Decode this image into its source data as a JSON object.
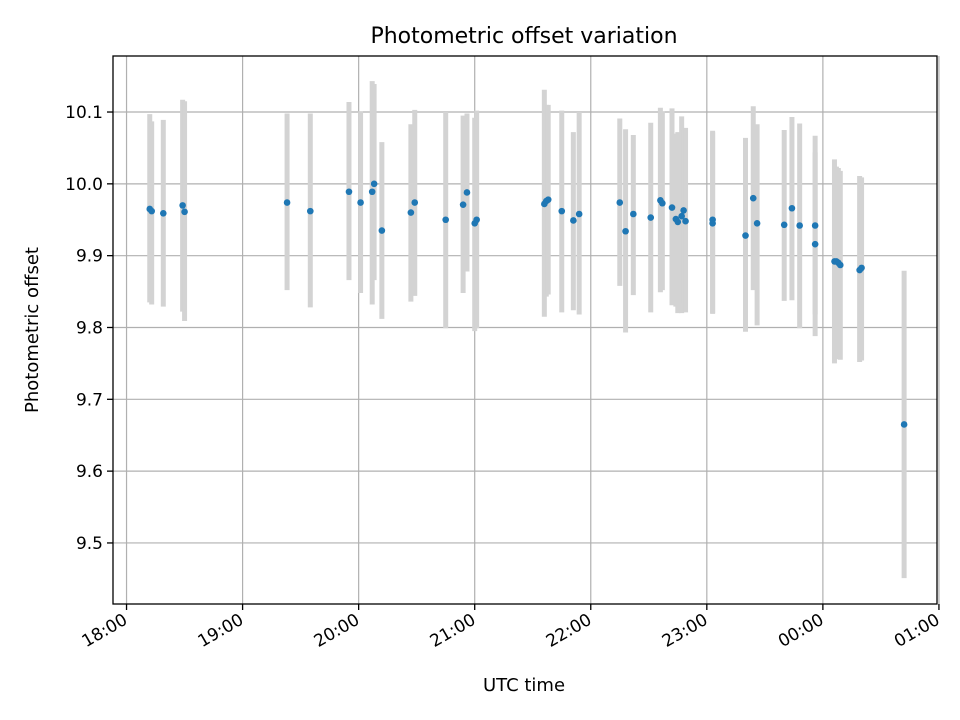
{
  "chart_data": {
    "type": "scatter",
    "title": "Photometric offset variation",
    "xlabel": "UTC time",
    "ylabel": "Photometric offset",
    "xlim": [
      "17:53",
      "00:59"
    ],
    "ylim": [
      9.415,
      10.178
    ],
    "x_ticks": [
      "18:00",
      "19:00",
      "20:00",
      "21:00",
      "22:00",
      "23:00",
      "00:00",
      "01:00"
    ],
    "y_ticks": [
      "9.5",
      "9.6",
      "9.7",
      "9.8",
      "9.9",
      "10.0",
      "10.1"
    ],
    "grid": true,
    "marker_color": "#1f77b4",
    "errorbar_color": "#d3d3d3",
    "series": [
      {
        "x": [
          "18:12",
          "18:13",
          "18:19",
          "18:29",
          "18:30",
          "19:23",
          "19:35",
          "19:55",
          "20:01",
          "20:07",
          "20:08",
          "20:12",
          "20:27",
          "20:29",
          "20:45",
          "20:54",
          "20:56",
          "21:00",
          "21:01",
          "21:36",
          "21:37",
          "21:38",
          "21:45",
          "21:51",
          "21:54",
          "22:15",
          "22:18",
          "22:22",
          "22:31",
          "22:36",
          "22:37",
          "22:42",
          "22:44",
          "22:45",
          "22:47",
          "22:48",
          "22:49",
          "23:03",
          "23:03",
          "23:20",
          "23:24",
          "23:26",
          "23:40",
          "23:44",
          "23:48",
          "23:56",
          "23:56",
          "00:06",
          "00:07",
          "00:08",
          "00:09",
          "00:19",
          "00:20",
          "00:42"
        ],
        "y": [
          9.965,
          9.962,
          9.959,
          9.97,
          9.961,
          9.974,
          9.962,
          9.989,
          9.974,
          9.989,
          10.0,
          9.935,
          9.96,
          9.974,
          9.95,
          9.971,
          9.988,
          9.945,
          9.95,
          9.972,
          9.976,
          9.978,
          9.962,
          9.949,
          9.958,
          9.974,
          9.934,
          9.958,
          9.953,
          9.977,
          9.973,
          9.967,
          9.951,
          9.947,
          9.955,
          9.963,
          9.948,
          9.95,
          9.945,
          9.928,
          9.98,
          9.945,
          9.943,
          9.966,
          9.942,
          9.916,
          9.942,
          9.892,
          9.892,
          9.89,
          9.887,
          9.88,
          9.883,
          9.665
        ],
        "y_low": [
          9.835,
          9.832,
          9.829,
          9.822,
          9.809,
          9.852,
          9.828,
          9.866,
          9.848,
          9.832,
          9.866,
          9.812,
          9.836,
          9.844,
          9.799,
          9.848,
          9.878,
          9.795,
          9.799,
          9.815,
          9.843,
          9.846,
          9.821,
          9.824,
          9.818,
          9.858,
          9.793,
          9.845,
          9.821,
          9.849,
          9.852,
          9.831,
          9.829,
          9.82,
          9.82,
          9.833,
          9.821,
          9.82,
          9.819,
          9.794,
          9.852,
          9.803,
          9.837,
          9.838,
          9.799,
          9.788,
          9.818,
          9.75,
          9.757,
          9.756,
          9.755,
          9.752,
          9.754,
          9.451
        ],
        "y_high": [
          10.097,
          10.087,
          10.089,
          10.117,
          10.115,
          10.098,
          10.098,
          10.114,
          10.101,
          10.143,
          10.139,
          10.058,
          10.083,
          10.103,
          10.1,
          10.095,
          10.098,
          10.092,
          10.102,
          10.131,
          10.11,
          10.11,
          10.102,
          10.072,
          10.1,
          10.091,
          10.076,
          10.068,
          10.085,
          10.106,
          10.101,
          10.105,
          10.07,
          10.072,
          10.094,
          10.076,
          10.078,
          10.074,
          10.072,
          10.064,
          10.108,
          10.083,
          10.075,
          10.093,
          10.084,
          10.044,
          10.067,
          10.034,
          10.024,
          10.022,
          10.018,
          10.011,
          10.009,
          9.879
        ]
      }
    ]
  }
}
